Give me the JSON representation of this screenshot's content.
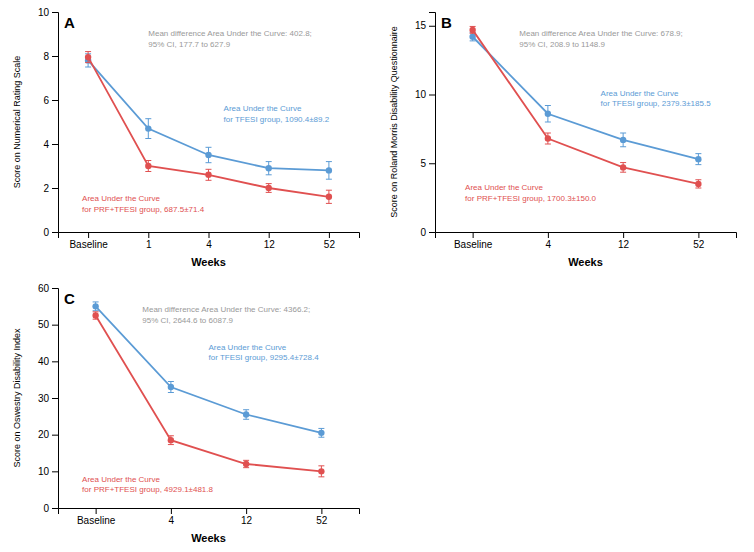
{
  "chart_data": [
    {
      "type": "line",
      "title": "A",
      "x_label": "Weeks",
      "y_label": "Score on Numerical Rating Scale",
      "categories": [
        "Baseline",
        "1",
        "4",
        "12",
        "52"
      ],
      "ylim": [
        0,
        10
      ],
      "yticks": [
        0,
        2,
        4,
        6,
        8,
        10
      ],
      "grid": false,
      "marker": "circle",
      "series": [
        {
          "color": "#5b9bd5",
          "values": [
            7.8,
            4.7,
            3.5,
            2.9,
            2.8
          ],
          "errors": [
            0.3,
            0.45,
            0.35,
            0.3,
            0.4
          ]
        },
        {
          "color": "#e05050",
          "values": [
            7.95,
            3.0,
            2.6,
            2.0,
            1.6
          ],
          "errors": [
            0.25,
            0.25,
            0.25,
            0.2,
            0.3
          ]
        }
      ],
      "annotations": [
        {
          "text": "Mean difference Area Under the Curve: 402.8;\n95% CI, 177.7 to 627.9",
          "color": "#999999"
        },
        {
          "text": "Area Under the Curve\nfor TFESI group, 1090.4±89.2",
          "color": "#5b9bd5"
        },
        {
          "text": "Area Under the Curve\nfor PRF+TFESI group, 687.5±71.4",
          "color": "#e05050"
        }
      ]
    },
    {
      "type": "line",
      "title": "B",
      "x_label": "Weeks",
      "y_label": "Score on Roland Morris Disability Questionnaire",
      "categories": [
        "Baseline",
        "4",
        "12",
        "52"
      ],
      "ylim": [
        0,
        16
      ],
      "yticks": [
        0,
        5,
        10,
        15
      ],
      "grid": false,
      "marker": "circle",
      "series": [
        {
          "color": "#5b9bd5",
          "values": [
            14.2,
            8.6,
            6.7,
            5.3
          ],
          "errors": [
            0.3,
            0.6,
            0.5,
            0.4
          ]
        },
        {
          "color": "#e05050",
          "values": [
            14.7,
            6.8,
            4.7,
            3.5
          ],
          "errors": [
            0.25,
            0.4,
            0.35,
            0.3
          ]
        }
      ],
      "annotations": [
        {
          "text": "Mean difference Area Under the Curve: 678.9;\n95% CI, 208.9 to 1148.9",
          "color": "#999999"
        },
        {
          "text": "Area Under the Curve\nfor TFESI group, 2379.3±185.5",
          "color": "#5b9bd5"
        },
        {
          "text": "Area Under the Curve\nfor PRF+TFESI group, 1700.3±150.0",
          "color": "#e05050"
        }
      ]
    },
    {
      "type": "line",
      "title": "C",
      "x_label": "Weeks",
      "y_label": "Score on Oswestry Disability Index",
      "categories": [
        "Baseline",
        "4",
        "12",
        "52"
      ],
      "ylim": [
        0,
        60
      ],
      "yticks": [
        0,
        10,
        20,
        30,
        40,
        50,
        60
      ],
      "grid": false,
      "marker": "circle",
      "series": [
        {
          "color": "#5b9bd5",
          "values": [
            55.0,
            33.0,
            25.5,
            20.5
          ],
          "errors": [
            1.2,
            1.5,
            1.3,
            1.2
          ]
        },
        {
          "color": "#e05050",
          "values": [
            52.5,
            18.5,
            12.0,
            10.0
          ],
          "errors": [
            1.0,
            1.2,
            1.0,
            1.5
          ]
        }
      ],
      "annotations": [
        {
          "text": "Mean difference Area Under the Curve: 4366.2;\n95% CI, 2644.6 to 6087.9",
          "color": "#999999"
        },
        {
          "text": "Area Under the Curve\nfor TFESI group, 9295.4±728.4",
          "color": "#5b9bd5"
        },
        {
          "text": "Area Under the Curve\nfor PRF+TFESI group, 4929.1±481.8",
          "color": "#e05050"
        }
      ]
    }
  ]
}
